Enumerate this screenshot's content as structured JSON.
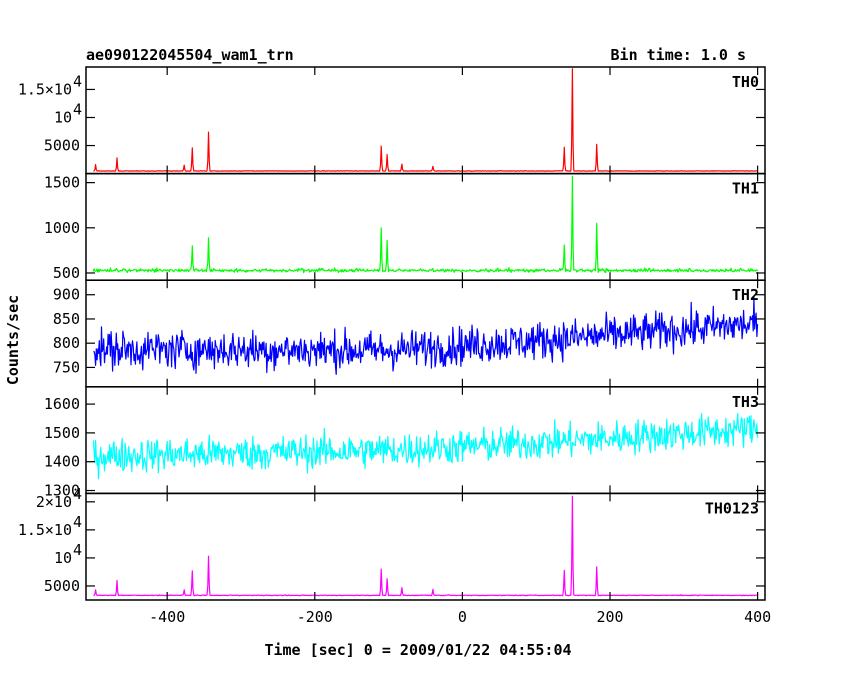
{
  "chart_data": {
    "type": "line",
    "title": "ae090122045504_wam1_trn",
    "subtitle": "Bin time: 1.0 s",
    "xlabel": "Time [sec] 0 = 2009/01/22 04:55:04",
    "ylabel": "Counts/sec",
    "xlim": [
      -510,
      410
    ],
    "xticks": [
      -400,
      -200,
      0,
      200,
      400
    ],
    "panels": [
      {
        "name": "TH0",
        "color": "#ff0000",
        "ylim": [
          0,
          19000
        ],
        "yticks": [
          {
            "v": 5000,
            "label": "5000"
          },
          {
            "v": 10000,
            "label": "10",
            "exp": "4"
          },
          {
            "v": 15000,
            "label": "1.5×10",
            "exp": "4"
          }
        ],
        "baseline": 450,
        "noise": 60,
        "spikes": [
          [
            -497,
            1600
          ],
          [
            -468,
            2800
          ],
          [
            -377,
            1500
          ],
          [
            -366,
            4600
          ],
          [
            -344,
            7400
          ],
          [
            -110,
            4900
          ],
          [
            -102,
            3400
          ],
          [
            -82,
            1700
          ],
          [
            -40,
            1300
          ],
          [
            138,
            4700
          ],
          [
            149,
            18700
          ],
          [
            182,
            5200
          ]
        ]
      },
      {
        "name": "TH1",
        "color": "#00ff00",
        "ylim": [
          420,
          1600
        ],
        "yticks": [
          {
            "v": 500,
            "label": "500"
          },
          {
            "v": 1000,
            "label": "1000"
          },
          {
            "v": 1500,
            "label": "1500"
          }
        ],
        "baseline": 520,
        "noise": 25,
        "spikes": [
          [
            -366,
            800
          ],
          [
            -344,
            890
          ],
          [
            -110,
            1000
          ],
          [
            -102,
            860
          ],
          [
            138,
            810
          ],
          [
            149,
            1570
          ],
          [
            182,
            1050
          ]
        ]
      },
      {
        "name": "TH2",
        "color": "#0000ff",
        "ylim": [
          710,
          930
        ],
        "yticks": [
          {
            "v": 750,
            "label": "750"
          },
          {
            "v": 800,
            "label": "800"
          },
          {
            "v": 850,
            "label": "850"
          },
          {
            "v": 900,
            "label": "900"
          }
        ],
        "trend": [
          [
            -500,
            787
          ],
          [
            -100,
            785
          ],
          [
            100,
            805
          ],
          [
            400,
            840
          ]
        ],
        "noise": 28
      },
      {
        "name": "TH3",
        "color": "#00ffff",
        "ylim": [
          1290,
          1660
        ],
        "yticks": [
          {
            "v": 1300,
            "label": "1300"
          },
          {
            "v": 1400,
            "label": "1400"
          },
          {
            "v": 1500,
            "label": "1500"
          },
          {
            "v": 1600,
            "label": "1600"
          }
        ],
        "trend": [
          [
            -500,
            1420
          ],
          [
            -100,
            1440
          ],
          [
            100,
            1465
          ],
          [
            400,
            1515
          ]
        ],
        "noise": 42
      },
      {
        "name": "TH0123",
        "color": "#ff00ff",
        "ylim": [
          2500,
          21500
        ],
        "yticks": [
          {
            "v": 5000,
            "label": "5000"
          },
          {
            "v": 10000,
            "label": "10",
            "exp": "4"
          },
          {
            "v": 15000,
            "label": "1.5×10",
            "exp": "4"
          },
          {
            "v": 20000,
            "label": "2×10",
            "exp": "4"
          }
        ],
        "baseline": 3300,
        "noise": 90,
        "spikes": [
          [
            -497,
            4300
          ],
          [
            -468,
            6000
          ],
          [
            -377,
            4300
          ],
          [
            -366,
            7700
          ],
          [
            -344,
            10300
          ],
          [
            -110,
            8000
          ],
          [
            -102,
            6300
          ],
          [
            -82,
            4700
          ],
          [
            -40,
            4400
          ],
          [
            138,
            7800
          ],
          [
            149,
            21000
          ],
          [
            182,
            8400
          ]
        ]
      }
    ]
  }
}
